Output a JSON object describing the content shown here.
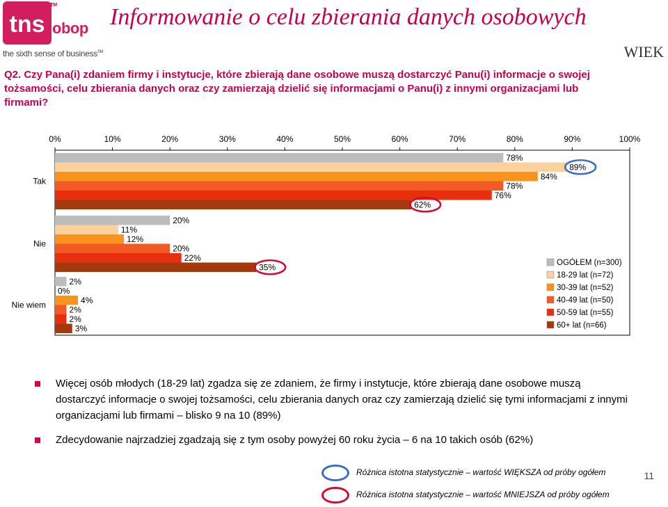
{
  "header": {
    "logo_tm": "TM",
    "logo_obop": "obop",
    "logo_tagline": "the sixth sense of business",
    "logo_tagline_tm": "SM",
    "title": "Informowanie o celu zbierania danych osobowych",
    "section_label": "WIEK"
  },
  "question": "Q2. Czy Pana(i) zdaniem firmy i instytucje, które zbierają dane osobowe muszą dostarczyć Panu(i) informacje o swojej tożsamości, celu zbierania danych oraz czy zamierzają dzielić się informacjami o Panu(i) z innymi organizacjami lub firmami?",
  "chart_data": {
    "type": "bar",
    "orientation": "horizontal",
    "categories": [
      "Tak",
      "Nie",
      "Nie wiem"
    ],
    "x_ticks": [
      "0%",
      "10%",
      "20%",
      "30%",
      "40%",
      "50%",
      "60%",
      "70%",
      "80%",
      "90%",
      "100%"
    ],
    "xlim": [
      0,
      100
    ],
    "series": [
      {
        "name": "OGÓŁEM (n=300)",
        "color": "#bdbdbd",
        "values": [
          78,
          20,
          2
        ]
      },
      {
        "name": "18-29 lat (n=72)",
        "color": "#fbd19e",
        "values": [
          89,
          11,
          0
        ]
      },
      {
        "name": "30-39 lat (n=52)",
        "color": "#f8941d",
        "values": [
          84,
          12,
          4
        ]
      },
      {
        "name": "40-49 lat (n=50)",
        "color": "#f15a22",
        "values": [
          78,
          20,
          2
        ]
      },
      {
        "name": "50-59 lat (n=55)",
        "color": "#e8300e",
        "values": [
          76,
          22,
          2
        ]
      },
      {
        "name": "60+ lat (n=66)",
        "color": "#a23a0e",
        "values": [
          62,
          35,
          3
        ]
      }
    ],
    "data_labels": [
      [
        "78%",
        "89%",
        "84%",
        "78%",
        "76%",
        "62%"
      ],
      [
        "20%",
        "11%",
        "12%",
        "20%",
        "22%",
        "35%"
      ],
      [
        "2%",
        "0%",
        "4%",
        "2%",
        "2%",
        "3%"
      ]
    ],
    "circled": {
      "blue": [
        [
          0,
          1
        ]
      ],
      "red": [
        [
          0,
          5
        ],
        [
          1,
          5
        ]
      ]
    },
    "legend_position": "right"
  },
  "bullets": [
    "Więcej osób młodych (18-29 lat) zgadza się ze zdaniem, że firmy i instytucje, które zbierają dane osobowe muszą dostarczyć informacje o swojej tożsamości, celu zbierania danych oraz czy zamierzają dzielić się tymi informacjami z innymi organizacjami lub firmami – blisko 9 na 10 (89%)",
    "Zdecydowanie najrzadziej zgadzają się z tym osoby powyżej 60 roku życia – 6 na 10 takich osób (62%)"
  ],
  "significance_legend": {
    "higher": "Różnica istotna statystycznie – wartość WIĘKSZA od próby ogółem",
    "lower": "Różnica istotna statystycznie – wartość MNIEJSZA od próby ogółem",
    "higher_color": "#3a6cc6",
    "lower_color": "#d3092d"
  },
  "page_number": "11"
}
